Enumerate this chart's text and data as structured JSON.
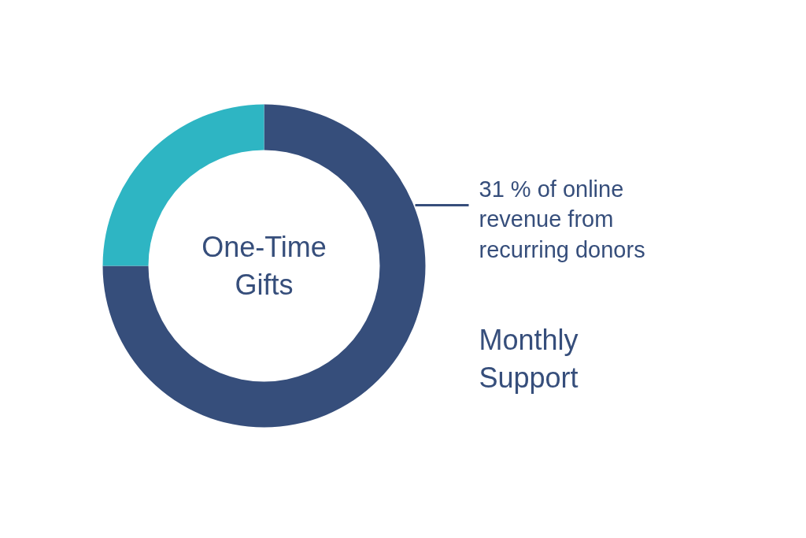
{
  "chart_data": {
    "type": "donut",
    "categories": [
      "Monthly Support",
      null
    ],
    "values": [
      75,
      25
    ],
    "colors": [
      "#364e7b",
      "#2eb5c3"
    ],
    "annotations": [
      "31 % of online revenue from recurring donors",
      "One-Time Gifts"
    ]
  }
}
